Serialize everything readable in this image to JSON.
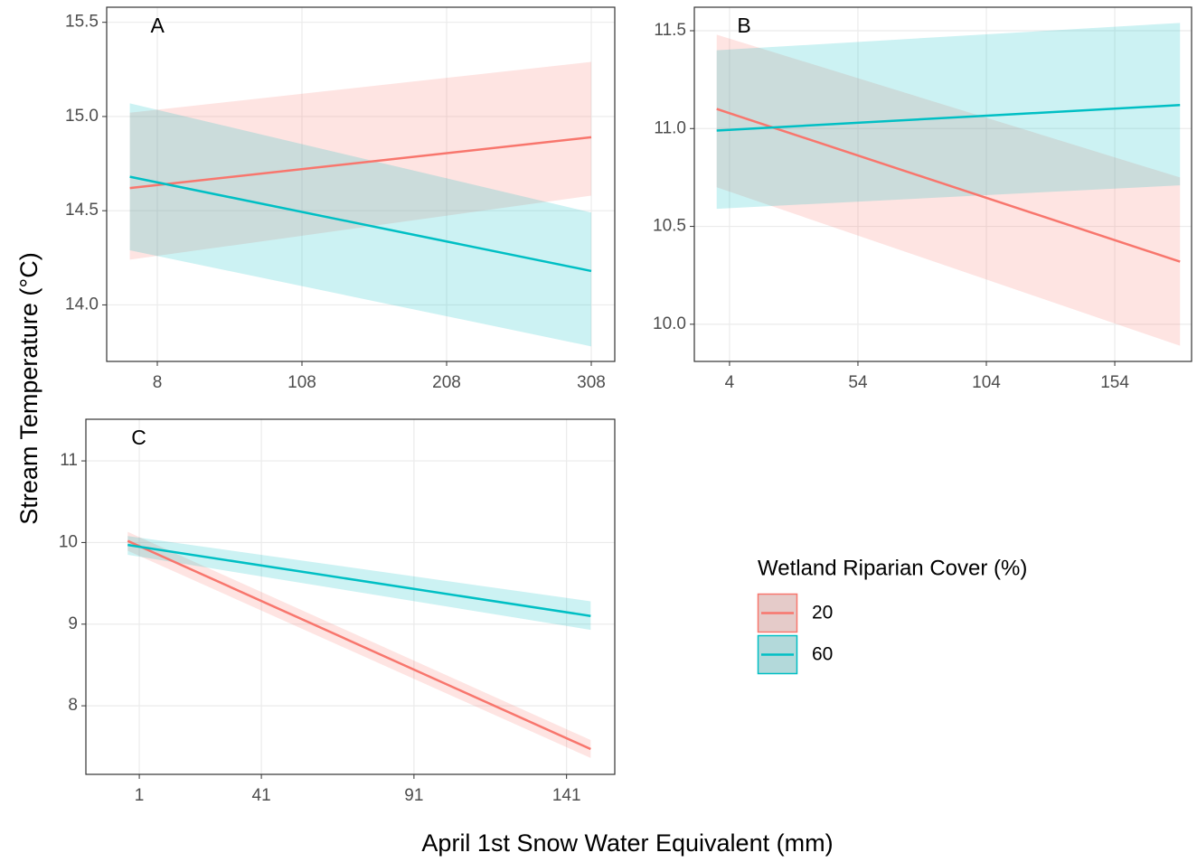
{
  "ylabel": "Stream Temperature (°C)",
  "xlabel": "April 1st Snow Water Equivalent (mm)",
  "legend": {
    "title": "Wetland Riparian Cover (%)",
    "series": [
      {
        "name": "20",
        "color": "#F8766D"
      },
      {
        "name": "60",
        "color": "#00BFC4"
      }
    ]
  },
  "chart_data": [
    {
      "type": "line",
      "title": "A",
      "x": [
        -11,
        308
      ],
      "series": [
        {
          "values": [
            14.62,
            14.89
          ],
          "lower": [
            14.24,
            14.58
          ],
          "upper": [
            15.02,
            15.29
          ]
        },
        {
          "values": [
            14.68,
            14.18
          ],
          "lower": [
            14.29,
            13.78
          ],
          "upper": [
            15.07,
            14.49
          ]
        }
      ],
      "xlim": [
        -27,
        324.25
      ],
      "xticks": [
        8,
        108,
        208,
        308
      ],
      "ylim": [
        13.7,
        15.58
      ],
      "yticks": [
        {
          "value": 14,
          "label": "14.0"
        },
        14.5,
        {
          "value": 15,
          "label": "15.0"
        },
        15.5
      ],
      "grid": true
    },
    {
      "type": "line",
      "title": "B",
      "x": [
        -1,
        179.4
      ],
      "series": [
        {
          "values": [
            11.1,
            10.32
          ],
          "lower": [
            10.7,
            9.89
          ],
          "upper": [
            11.48,
            10.75
          ]
        },
        {
          "values": [
            10.99,
            11.12
          ],
          "lower": [
            10.59,
            10.71
          ],
          "upper": [
            11.4,
            11.54
          ]
        }
      ],
      "xlim": [
        -9.7,
        183.9
      ],
      "xticks": [
        4,
        54,
        104,
        154
      ],
      "ylim": [
        9.81,
        11.62
      ],
      "yticks": [
        {
          "value": 10,
          "label": "10.0"
        },
        10.5,
        {
          "value": 11,
          "label": "11.0"
        },
        11.5
      ],
      "grid": true
    },
    {
      "type": "line",
      "title": "C",
      "x": [
        -2.8,
        148.9
      ],
      "series": [
        {
          "values": [
            10.02,
            7.47
          ],
          "lower": [
            9.9,
            7.36
          ],
          "upper": [
            10.13,
            7.58
          ]
        },
        {
          "values": [
            9.97,
            9.1
          ],
          "lower": [
            9.85,
            8.93
          ],
          "upper": [
            10.08,
            9.28
          ]
        }
      ],
      "xlim": [
        -16.5,
        156.8
      ],
      "xticks": [
        1,
        41,
        91,
        141
      ],
      "ylim": [
        7.16,
        11.51
      ],
      "yticks": [
        8,
        9,
        10,
        11
      ],
      "grid": true
    }
  ]
}
